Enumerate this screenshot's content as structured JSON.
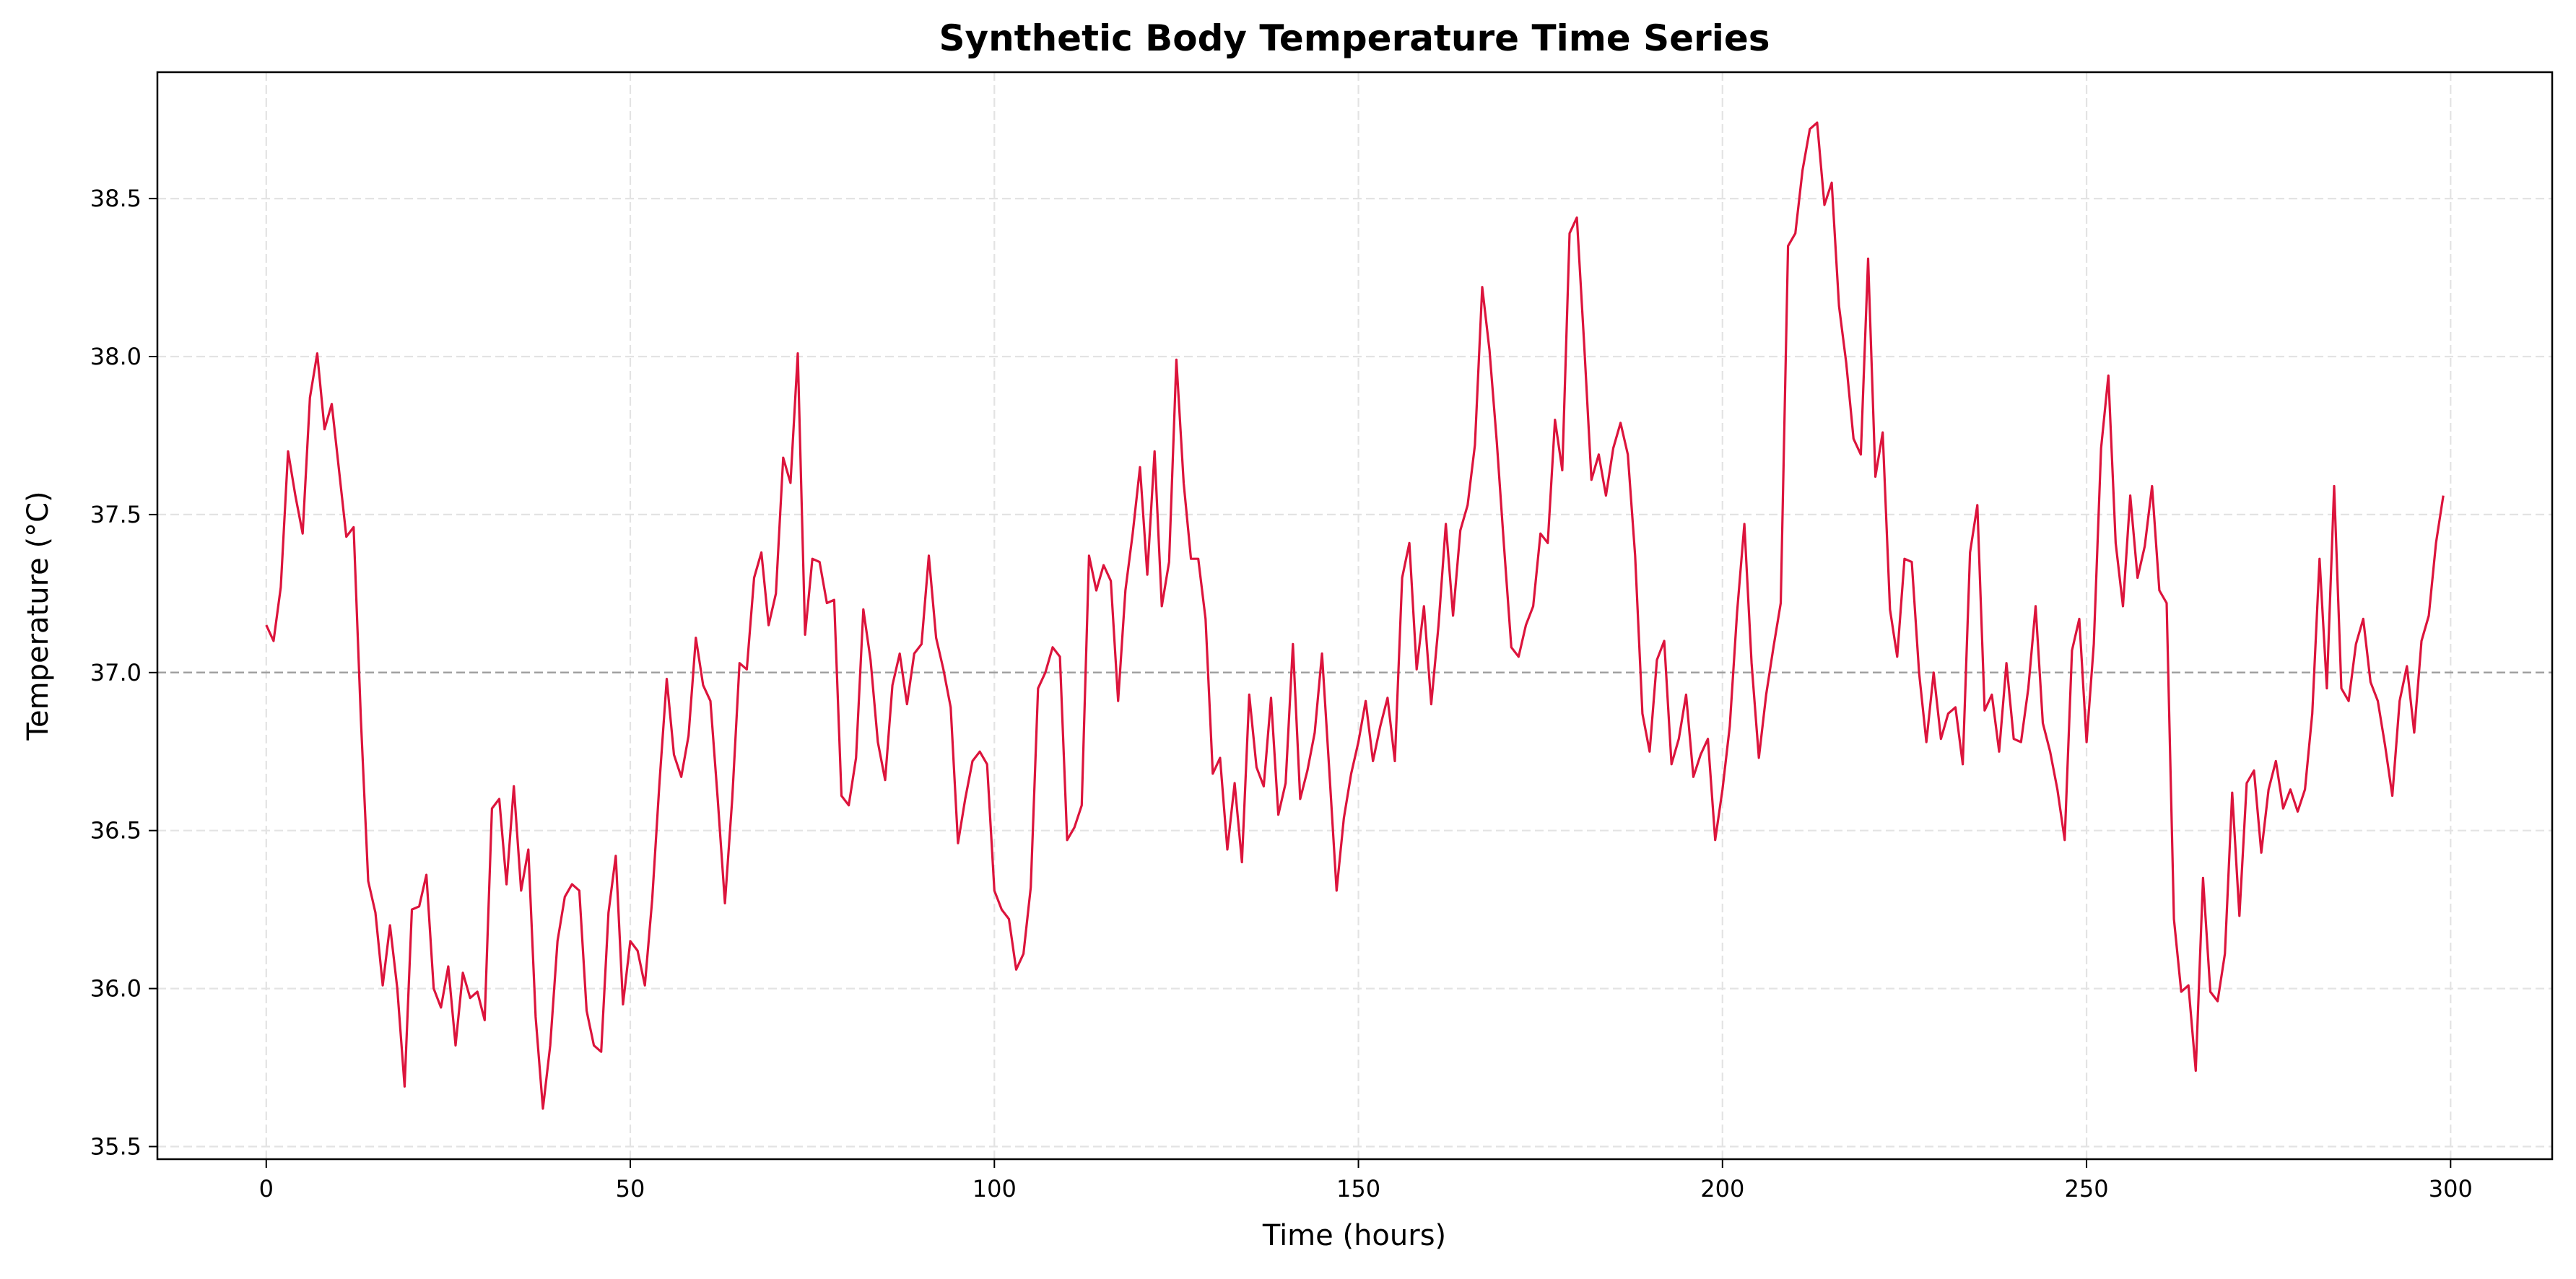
{
  "chart_data": {
    "type": "line",
    "title": "Synthetic Body Temperature Time Series",
    "xlabel": "Time (hours)",
    "ylabel": "Temperature (°C)",
    "xlim": [
      -14.95,
      313.95
    ],
    "ylim": [
      35.46,
      38.9
    ],
    "xticks": [
      0,
      50,
      100,
      150,
      200,
      250,
      300
    ],
    "xtick_labels": [
      "0",
      "50",
      "100",
      "150",
      "200",
      "250",
      "300"
    ],
    "yticks": [
      35.5,
      36.0,
      36.5,
      37.0,
      37.5,
      38.0,
      38.5
    ],
    "ytick_labels": [
      "35.5",
      "36.0",
      "36.5",
      "37.0",
      "37.5",
      "38.0",
      "38.5"
    ],
    "grid": true,
    "reference_line": {
      "y": 37.0,
      "color": "#a0a0a0",
      "style": "dashed"
    },
    "series": [
      {
        "color": "#dc143c",
        "x_start": 0,
        "x_step": 1,
        "values": [
          37.15,
          37.1,
          37.27,
          37.7,
          37.56,
          37.44,
          37.87,
          38.01,
          37.77,
          37.85,
          37.64,
          37.43,
          37.46,
          36.85,
          36.34,
          36.24,
          36.01,
          36.2,
          36.0,
          35.69,
          36.25,
          36.26,
          36.36,
          36.0,
          35.94,
          36.07,
          35.82,
          36.05,
          35.97,
          35.99,
          35.9,
          36.57,
          36.6,
          36.33,
          36.64,
          36.31,
          36.44,
          35.91,
          35.62,
          35.82,
          36.15,
          36.29,
          36.33,
          36.31,
          35.93,
          35.82,
          35.8,
          36.24,
          36.42,
          35.95,
          36.15,
          36.12,
          36.01,
          36.28,
          36.65,
          36.98,
          36.74,
          36.67,
          36.8,
          37.11,
          36.96,
          36.91,
          36.6,
          36.27,
          36.6,
          37.03,
          37.01,
          37.3,
          37.38,
          37.15,
          37.25,
          37.68,
          37.6,
          38.01,
          37.12,
          37.36,
          37.35,
          37.22,
          37.23,
          36.61,
          36.58,
          36.73,
          37.2,
          37.04,
          36.78,
          36.66,
          36.96,
          37.06,
          36.9,
          37.06,
          37.09,
          37.37,
          37.11,
          37.01,
          36.89,
          36.46,
          36.6,
          36.72,
          36.75,
          36.71,
          36.31,
          36.25,
          36.22,
          36.06,
          36.11,
          36.32,
          36.95,
          37.0,
          37.08,
          37.05,
          36.47,
          36.51,
          36.58,
          37.37,
          37.26,
          37.34,
          37.29,
          36.91,
          37.26,
          37.44,
          37.65,
          37.31,
          37.7,
          37.21,
          37.35,
          37.99,
          37.6,
          37.36,
          37.36,
          37.17,
          36.68,
          36.73,
          36.44,
          36.65,
          36.4,
          36.93,
          36.7,
          36.64,
          36.92,
          36.55,
          36.65,
          37.09,
          36.6,
          36.69,
          36.81,
          37.06,
          36.69,
          36.31,
          36.54,
          36.68,
          36.78,
          36.91,
          36.72,
          36.83,
          36.92,
          36.72,
          37.3,
          37.41,
          37.01,
          37.21,
          36.9,
          37.15,
          37.47,
          37.18,
          37.45,
          37.53,
          37.72,
          38.22,
          38.02,
          37.73,
          37.4,
          37.08,
          37.05,
          37.15,
          37.21,
          37.44,
          37.41,
          37.8,
          37.64,
          38.39,
          38.44,
          38.04,
          37.61,
          37.69,
          37.56,
          37.71,
          37.79,
          37.69,
          37.37,
          36.87,
          36.75,
          37.04,
          37.1,
          36.71,
          36.79,
          36.93,
          36.67,
          36.74,
          36.79,
          36.47,
          36.63,
          36.83,
          37.19,
          37.47,
          37.03,
          36.73,
          36.93,
          37.08,
          37.22,
          38.35,
          38.39,
          38.59,
          38.72,
          38.74,
          38.48,
          38.55,
          38.16,
          37.98,
          37.74,
          37.69,
          38.31,
          37.62,
          37.76,
          37.2,
          37.05,
          37.36,
          37.35,
          37.0,
          36.78,
          37.0,
          36.79,
          36.87,
          36.89,
          36.71,
          37.38,
          37.53,
          36.88,
          36.93,
          36.75,
          37.03,
          36.79,
          36.78,
          36.95,
          37.21,
          36.84,
          36.75,
          36.63,
          36.47,
          37.07,
          37.17,
          36.78,
          37.09,
          37.71,
          37.94,
          37.41,
          37.21,
          37.56,
          37.3,
          37.4,
          37.59,
          37.26,
          37.22,
          36.22,
          35.99,
          36.01,
          35.74,
          36.35,
          35.99,
          35.96,
          36.11,
          36.62,
          36.23,
          36.65,
          36.69,
          36.43,
          36.63,
          36.72,
          36.57,
          36.63,
          36.56,
          36.63,
          36.87,
          37.36,
          36.95,
          37.59,
          36.95,
          36.91,
          37.09,
          37.17,
          36.97,
          36.91,
          36.77,
          36.61,
          36.91,
          37.02,
          36.81,
          37.1,
          37.18,
          37.41,
          37.56
        ]
      }
    ]
  }
}
